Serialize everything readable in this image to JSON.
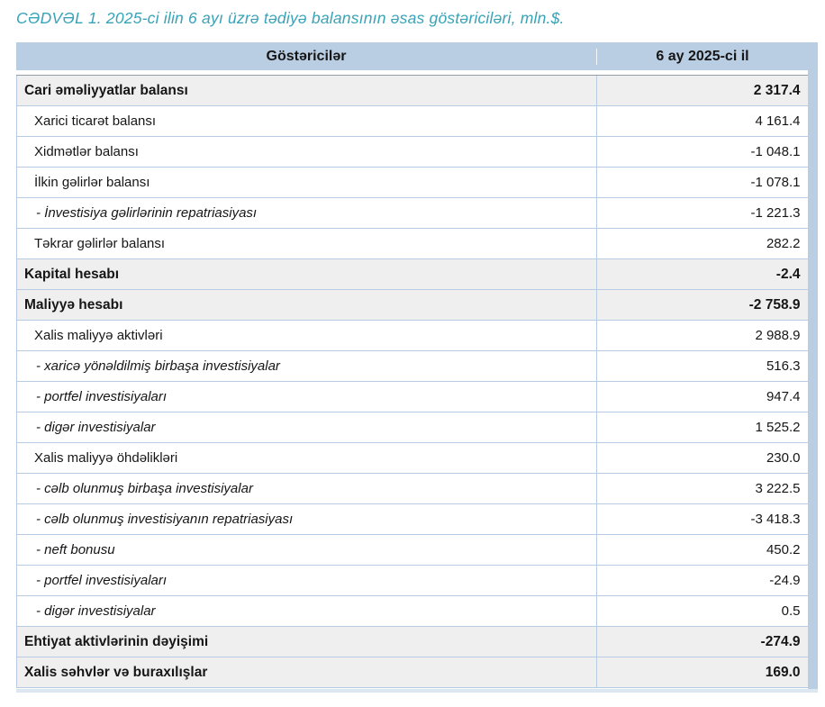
{
  "title": "CƏDVƏL 1. 2025-ci ilin 6 ayı üzrə tədiyə balansının əsas göstəriciləri, mln.$.",
  "header": {
    "col1": "Göstəricilər",
    "col2": "6 ay 2025-ci il"
  },
  "colors": {
    "title_accent": "#38a3b8",
    "header_band": "#b9cde3",
    "section_row_bg": "#efefef",
    "grid_border": "#b7cce2"
  },
  "rows": [
    {
      "label": "Cari əməliyyatlar balansı",
      "value": "2 317.4",
      "style": "section"
    },
    {
      "label": "Xarici ticarət balansı",
      "value": "4 161.4",
      "style": "sub"
    },
    {
      "label": "Xidmətlər balansı",
      "value": "-1 048.1",
      "style": "sub"
    },
    {
      "label": "İlkin gəlirlər balansı",
      "value": "-1 078.1",
      "style": "sub"
    },
    {
      "label": "- İnvestisiya gəlirlərinin repatriasiyası",
      "value": "-1 221.3",
      "style": "item"
    },
    {
      "label": "Təkrar gəlirlər balansı",
      "value": "282.2",
      "style": "sub"
    },
    {
      "label": "Kapital hesabı",
      "value": "-2.4",
      "style": "section"
    },
    {
      "label": "Maliyyə hesabı",
      "value": "-2 758.9",
      "style": "section"
    },
    {
      "label": "Xalis maliyyə aktivləri",
      "value": "2 988.9",
      "style": "sub"
    },
    {
      "label": "- xaricə yönəldilmiş birbaşa investisiyalar",
      "value": "516.3",
      "style": "item"
    },
    {
      "label": "- portfel investisiyaları",
      "value": "947.4",
      "style": "item"
    },
    {
      "label": "- digər investisiyalar",
      "value": "1 525.2",
      "style": "item"
    },
    {
      "label": "Xalis maliyyə öhdəlikləri",
      "value": "230.0",
      "style": "sub"
    },
    {
      "label": "- cəlb olunmuş birbaşa investisiyalar",
      "value": "3 222.5",
      "style": "item"
    },
    {
      "label": "- cəlb olunmuş investisiyanın repatriasiyası",
      "value": "-3 418.3",
      "style": "item"
    },
    {
      "label": "- neft bonusu",
      "value": "450.2",
      "style": "item"
    },
    {
      "label": "- portfel investisiyaları",
      "value": "-24.9",
      "style": "item"
    },
    {
      "label": "- digər investisiyalar",
      "value": "0.5",
      "style": "item"
    },
    {
      "label": "Ehtiyat aktivlərinin dəyişimi",
      "value": "-274.9",
      "style": "section"
    },
    {
      "label": "Xalis səhvlər və buraxılışlar",
      "value": "169.0",
      "style": "section"
    }
  ]
}
